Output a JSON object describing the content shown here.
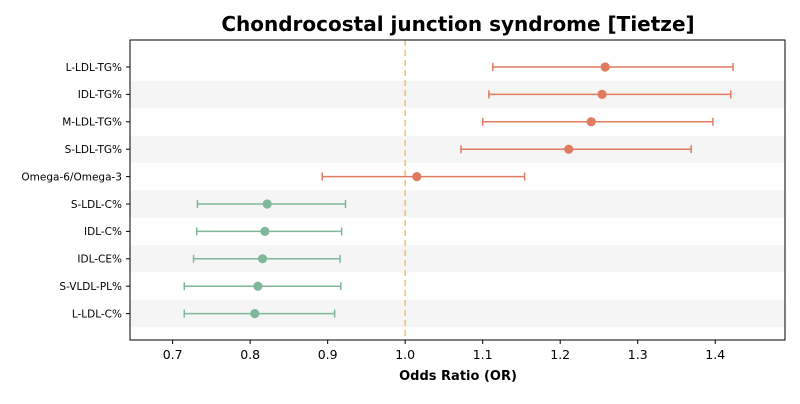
{
  "chart_data": {
    "type": "forest",
    "title": "Chondrocostal junction syndrome [Tietze]",
    "xlabel": "Odds Ratio (OR)",
    "xlim": [
      0.645,
      1.49
    ],
    "xticks": [
      0.7,
      0.8,
      0.9,
      1.0,
      1.1,
      1.2,
      1.3,
      1.4
    ],
    "xtick_labels": [
      "0.7",
      "0.8",
      "0.9",
      "1.0",
      "1.1",
      "1.2",
      "1.3",
      "1.4"
    ],
    "reference_line": 1.0,
    "colors": {
      "positive": "#e07b5f",
      "negative": "#7fb79a",
      "reference": "#f0c27a",
      "band": "#f5f5f5"
    },
    "rows": [
      {
        "label": "L-LDL-TG%",
        "or": 1.258,
        "lo": 1.113,
        "hi": 1.423,
        "group": "positive"
      },
      {
        "label": "IDL-TG%",
        "or": 1.254,
        "lo": 1.108,
        "hi": 1.42,
        "group": "positive"
      },
      {
        "label": "M-LDL-TG%",
        "or": 1.24,
        "lo": 1.1,
        "hi": 1.397,
        "group": "positive"
      },
      {
        "label": "S-LDL-TG%",
        "or": 1.211,
        "lo": 1.072,
        "hi": 1.369,
        "group": "positive"
      },
      {
        "label": "Omega-6/Omega-3",
        "or": 1.015,
        "lo": 0.893,
        "hi": 1.154,
        "group": "positive"
      },
      {
        "label": "S-LDL-C%",
        "or": 0.822,
        "lo": 0.732,
        "hi": 0.923,
        "group": "negative"
      },
      {
        "label": "IDL-C%",
        "or": 0.819,
        "lo": 0.731,
        "hi": 0.918,
        "group": "negative"
      },
      {
        "label": "IDL-CE%",
        "or": 0.816,
        "lo": 0.727,
        "hi": 0.916,
        "group": "negative"
      },
      {
        "label": "S-VLDL-PL%",
        "or": 0.81,
        "lo": 0.715,
        "hi": 0.917,
        "group": "negative"
      },
      {
        "label": "L-LDL-C%",
        "or": 0.806,
        "lo": 0.715,
        "hi": 0.909,
        "group": "negative"
      }
    ]
  }
}
